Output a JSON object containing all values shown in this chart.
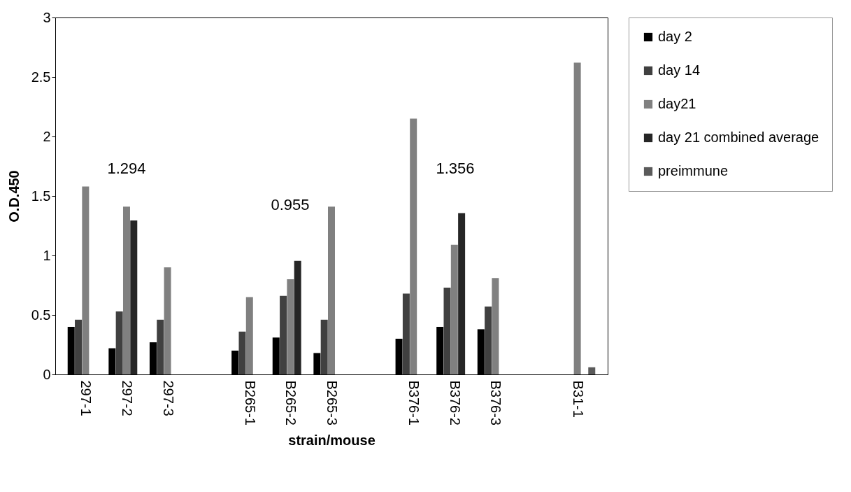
{
  "chart_data": {
    "type": "bar",
    "xlabel": "strain/mouse",
    "ylabel": "O.D.450",
    "categories": [
      "297-1",
      "297-2",
      "297-3",
      null,
      "B265-1",
      "B265-2",
      "B265-3",
      null,
      "B376-1",
      "B376-2",
      "B376-3",
      null,
      "B31-1"
    ],
    "series": [
      {
        "name": "day 2",
        "color": "#000000",
        "values": [
          0.4,
          0.22,
          0.27,
          null,
          0.2,
          0.31,
          0.18,
          null,
          0.3,
          0.4,
          0.38,
          null,
          null
        ]
      },
      {
        "name": "day 14",
        "color": "#404040",
        "values": [
          0.46,
          0.53,
          0.46,
          null,
          0.36,
          0.66,
          0.46,
          null,
          0.68,
          0.73,
          0.57,
          null,
          null
        ]
      },
      {
        "name": "day21",
        "color": "#808080",
        "values": [
          1.58,
          1.41,
          0.9,
          null,
          0.65,
          0.8,
          1.41,
          null,
          2.15,
          1.09,
          0.81,
          null,
          2.62
        ]
      },
      {
        "name": "day 21 combined average",
        "color": "#262626",
        "values": [
          null,
          1.294,
          null,
          null,
          null,
          0.955,
          null,
          null,
          null,
          1.356,
          null,
          null,
          null
        ]
      },
      {
        "name": "preimmune",
        "color": "#5a5a5a",
        "values": [
          null,
          null,
          null,
          null,
          null,
          null,
          null,
          null,
          null,
          null,
          null,
          null,
          0.06
        ]
      }
    ],
    "ylim": [
      0,
      3
    ],
    "yticks": [
      0,
      0.5,
      1,
      1.5,
      2,
      2.5,
      3
    ],
    "annotations": [
      "1.294",
      "0.955",
      "1.356"
    ],
    "grid": false,
    "legend": "top right"
  }
}
